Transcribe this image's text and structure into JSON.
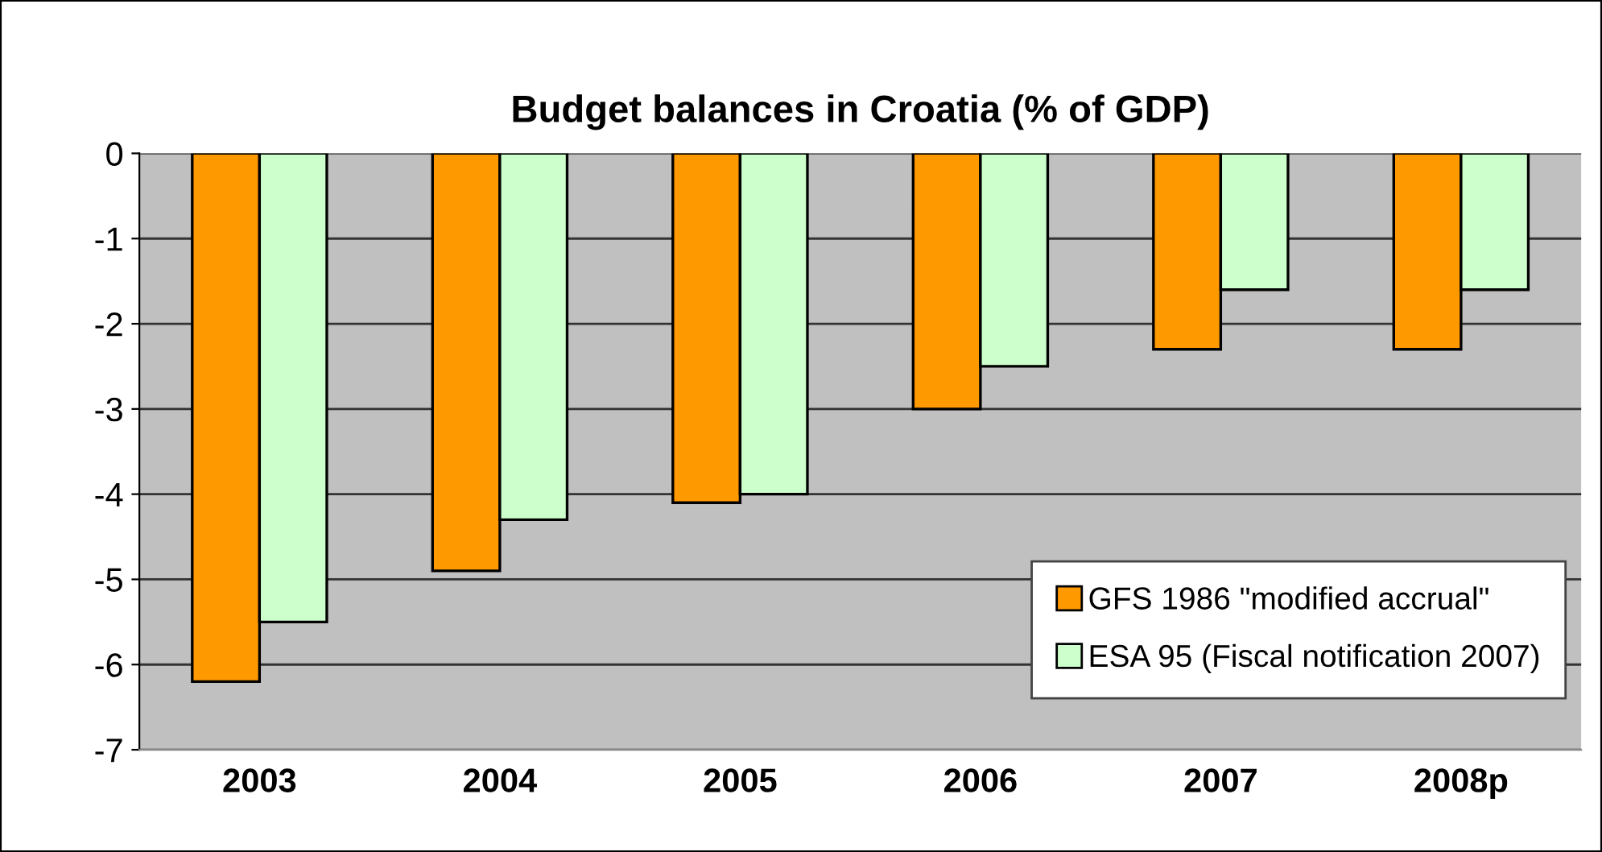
{
  "chart_data": {
    "type": "bar",
    "title": "Budget balances in Croatia (% of GDP)",
    "categories": [
      "2003",
      "2004",
      "2005",
      "2006",
      "2007",
      "2008p"
    ],
    "series": [
      {
        "name": "GFS 1986 \"modified accrual\"",
        "color": "#ff9900",
        "values": [
          -6.2,
          -4.9,
          -4.1,
          -3.0,
          -2.3,
          -2.3
        ]
      },
      {
        "name": "ESA 95 (Fiscal notification 2007)",
        "color": "#ccffcc",
        "values": [
          -5.5,
          -4.3,
          -4.0,
          -2.5,
          -1.6,
          -1.6
        ]
      }
    ],
    "ylim": [
      -7,
      0
    ],
    "yticks": [
      0,
      -1,
      -2,
      -3,
      -4,
      -5,
      -6,
      -7
    ],
    "grid": "y",
    "legend": "bottom right"
  }
}
